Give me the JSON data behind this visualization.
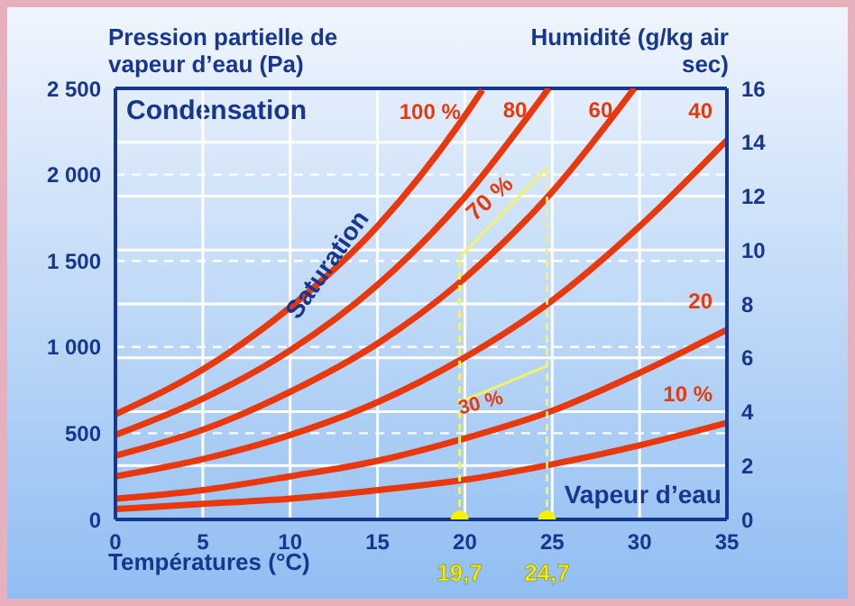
{
  "chart_data": {
    "type": "line",
    "ylabel": "Pression partielle de vapeur d’eau (Pa)",
    "y2label": "Humidité (g/kg air sec)",
    "xlabel": "Températures (°C)",
    "xlim": [
      0,
      35
    ],
    "xticks": [
      0,
      5,
      10,
      15,
      20,
      25,
      30,
      35
    ],
    "ylim": [
      0,
      2500
    ],
    "yticks": [
      0,
      {
        "value": 500,
        "label": "500"
      },
      {
        "value": 1000,
        "label": "1 000"
      },
      {
        "value": 1500,
        "label": "1 500"
      },
      {
        "value": 2000,
        "label": "2 000"
      },
      {
        "value": 2500,
        "label": "2 500"
      }
    ],
    "y2lim": [
      0,
      16
    ],
    "y2ticks": [
      0,
      2,
      4,
      6,
      8,
      10,
      12,
      14,
      16
    ],
    "grid": true,
    "legend": false,
    "marker": "none",
    "line_style": "solid",
    "series": [
      {
        "name": "100 %",
        "color": "#e8380d",
        "x": [
          0,
          5,
          10,
          15,
          20,
          21
        ],
        "values": [
          610,
          870,
          1230,
          1700,
          2340,
          2490
        ]
      },
      {
        "name": "80",
        "color": "#e8380d",
        "x": [
          0,
          5,
          10,
          15,
          20,
          24.8
        ],
        "values": [
          490,
          700,
          980,
          1360,
          1870,
          2500
        ]
      },
      {
        "name": "60",
        "color": "#e8380d",
        "x": [
          0,
          5,
          10,
          15,
          20,
          25,
          29.7
        ],
        "values": [
          370,
          520,
          740,
          1020,
          1400,
          1900,
          2500
        ]
      },
      {
        "name": "40",
        "color": "#e8380d",
        "x": [
          0,
          5,
          10,
          15,
          20,
          25,
          30,
          35
        ],
        "values": [
          250,
          350,
          490,
          680,
          940,
          1270,
          1700,
          2200
        ]
      },
      {
        "name": "20",
        "color": "#e8380d",
        "x": [
          0,
          5,
          10,
          15,
          20,
          25,
          30,
          35
        ],
        "values": [
          120,
          170,
          250,
          340,
          470,
          630,
          850,
          1100
        ]
      },
      {
        "name": "10 %",
        "color": "#e8380d",
        "x": [
          0,
          5,
          10,
          15,
          20,
          25,
          30,
          35
        ],
        "values": [
          60,
          90,
          120,
          170,
          230,
          320,
          430,
          560
        ]
      },
      {
        "name": "70 %",
        "color": "#f4f26a",
        "x": [
          19.7,
          24.7
        ],
        "values": [
          1520,
          2040
        ]
      },
      {
        "name": "30 %",
        "color": "#f4f26a",
        "x": [
          19.7,
          24.7
        ],
        "values": [
          680,
          890
        ]
      },
      {
        "color": "#f4f26a",
        "line_style": "dashed",
        "x": [
          19.7,
          19.7
        ],
        "values": [
          0,
          1520
        ]
      },
      {
        "color": "#f4f26a",
        "line_style": "dashed",
        "x": [
          24.7,
          24.7
        ],
        "values": [
          0,
          2040
        ]
      },
      {
        "type": "scatter",
        "marker": "circle",
        "color": "#f7f000",
        "x": [
          19.7,
          24.7
        ],
        "values": [
          0,
          0
        ]
      }
    ],
    "annotations": [
      "Condensation",
      "Vapeur d’eau",
      {
        "text": "Saturation",
        "x": 12.5,
        "y": 1450
      },
      {
        "text": "19,7",
        "x": 19.7,
        "y": 0
      },
      {
        "text": "24,7",
        "x": 24.7,
        "y": 0
      }
    ]
  }
}
